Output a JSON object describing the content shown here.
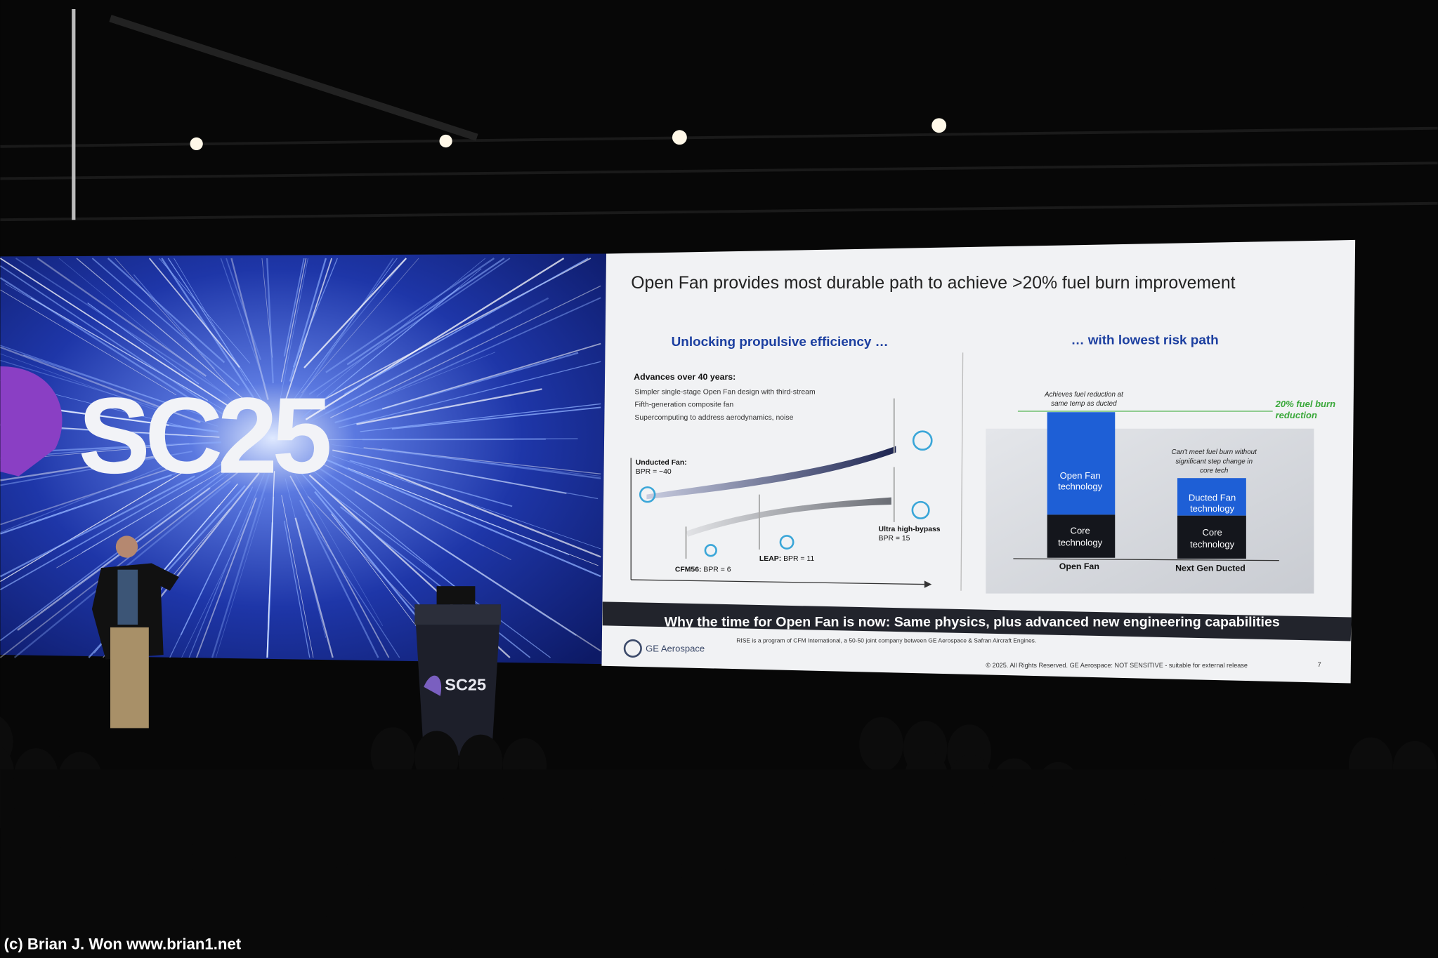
{
  "logo": "SC25",
  "slide": {
    "title": "Open Fan provides most durable path to achieve >20% fuel burn improvement",
    "left_heading": "Unlocking propulsive efficiency …",
    "right_heading": "… with lowest risk path",
    "advances": {
      "heading": "Advances over 40 years:",
      "items": [
        "Simpler single-stage Open Fan design with third-stream",
        "Fifth-generation composite fan",
        "Supercomputing to address aerodynamics, noise"
      ]
    },
    "engines": {
      "unducted": [
        "Unducted Fan:",
        "BPR = ~40"
      ],
      "cfm56": [
        "CFM56:",
        "BPR = 6"
      ],
      "leap": [
        "LEAP:",
        "BPR = 11"
      ],
      "ultra": [
        "Ultra high-bypass",
        "BPR = 15"
      ]
    },
    "comparison": {
      "note_left": [
        "Achieves fuel reduction at",
        "same temp as ducted"
      ],
      "target": [
        "20% fuel burn",
        "reduction"
      ],
      "note_right": [
        "Can't meet fuel burn without",
        "significant step change in",
        "core tech"
      ],
      "open_fan": {
        "top": [
          "Open Fan",
          "technology"
        ],
        "core": [
          "Core",
          "technology"
        ],
        "label": "Open Fan"
      },
      "ducted": {
        "top": [
          "Ducted Fan",
          "technology"
        ],
        "core": [
          "Core",
          "technology"
        ],
        "label": "Next Gen Ducted"
      }
    },
    "banner": "Why the time for Open Fan is now: Same physics, plus advanced new engineering capabilities",
    "brand": "GE Aerospace",
    "rise_note": "RISE is a program of CFM International, a 50-50 joint company between GE Aerospace & Safran Aircraft Engines.",
    "copyright": "© 2025. All Rights Reserved. GE Aerospace: NOT SENSITIVE - suitable for external release",
    "page": "7"
  },
  "podium_logo": "SC25",
  "watermark": "(c) Brian J. Won www.brian1.net"
}
